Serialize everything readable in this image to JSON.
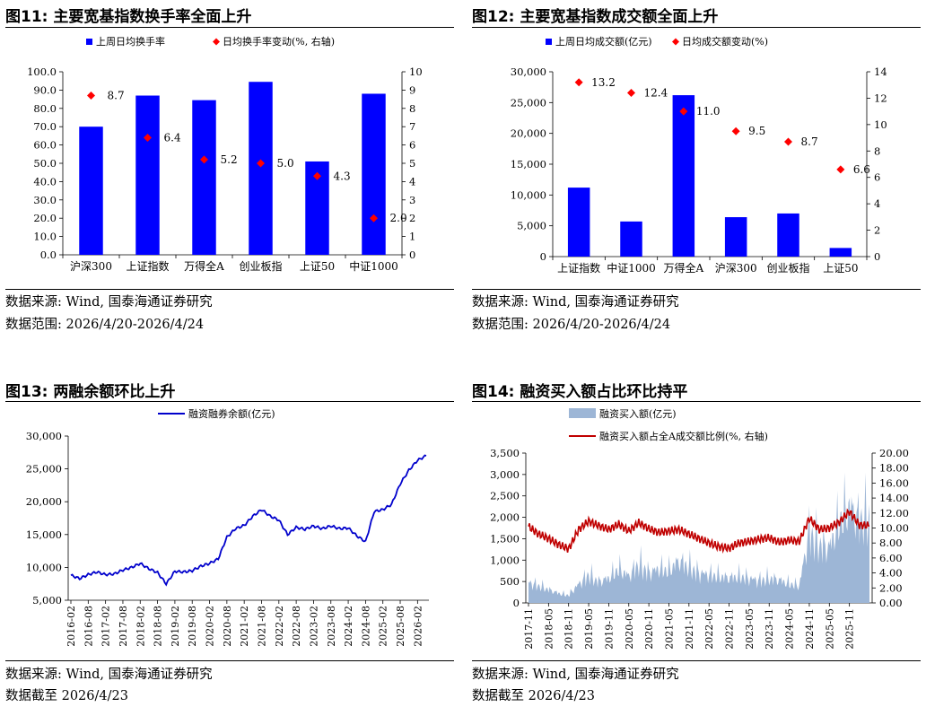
{
  "panels": [
    {
      "title": "图11: 主要宽基指数换手率全面上升",
      "source": "数据来源: Wind, 国泰海通证券研究",
      "note": "数据范围: 2026/4/20-2026/4/24"
    },
    {
      "title": "图12: 主要宽基指数成交额全面上升",
      "source": "数据来源: Wind, 国泰海通证券研究",
      "note": "数据范围: 2026/4/20-2026/4/24"
    },
    {
      "title": "图13: 两融余额环比上升",
      "source": "数据来源: Wind, 国泰海通证券研究",
      "note": "数据截至 2026/4/23"
    },
    {
      "title": "图14: 融资买入额占比环比持平",
      "source": "数据来源: Wind, 国泰海通证券研究",
      "note": "数据截至 2026/4/23"
    }
  ],
  "colors": {
    "bar": "#0000FF",
    "marker": "#FF0000",
    "line": "#0000CC",
    "area": "#9DB6D6",
    "ratio": "#C00000"
  },
  "chart_data": [
    {
      "type": "bar",
      "categories": [
        "沪深300",
        "上证指数",
        "万得全A",
        "创业板指",
        "上证50",
        "中证1000"
      ],
      "series": [
        {
          "name": "上周日均换手率",
          "axis": "left",
          "values": [
            70,
            87,
            84.5,
            94.5,
            51,
            88
          ]
        },
        {
          "name": "日均换手率变动(%, 右轴)",
          "axis": "right",
          "kind": "marker",
          "values": [
            8.7,
            6.4,
            5.2,
            5.0,
            4.3,
            2.0
          ]
        }
      ],
      "ylim": [
        0,
        100
      ],
      "yticks": [
        "0.0",
        "10.0",
        "20.0",
        "30.0",
        "40.0",
        "50.0",
        "60.0",
        "70.0",
        "80.0",
        "90.0",
        "100.0"
      ],
      "y2lim": [
        0,
        10
      ],
      "y2ticks": [
        "0",
        "1",
        "2",
        "3",
        "4",
        "5",
        "6",
        "7",
        "8",
        "9",
        "10"
      ],
      "labels": [
        "8.7",
        "6.4",
        "5.2",
        "5.0",
        "4.3",
        "2.0"
      ]
    },
    {
      "type": "bar",
      "categories": [
        "上证指数",
        "中证1000",
        "万得全A",
        "沪深300",
        "创业板指",
        "上证50"
      ],
      "series": [
        {
          "name": "上周日均成交额(亿元)",
          "axis": "left",
          "values": [
            11200,
            5700,
            26200,
            6400,
            7000,
            1400
          ]
        },
        {
          "name": "日均成交额变动(%)",
          "axis": "right",
          "kind": "marker",
          "values": [
            13.2,
            12.4,
            11.0,
            9.5,
            8.7,
            6.6
          ]
        }
      ],
      "ylim": [
        0,
        30000
      ],
      "yticks": [
        "0",
        "5,000",
        "10,000",
        "15,000",
        "20,000",
        "25,000",
        "30,000"
      ],
      "y2lim": [
        0,
        14
      ],
      "y2ticks": [
        "0",
        "2",
        "4",
        "6",
        "8",
        "10",
        "12",
        "14"
      ],
      "labels": [
        "13.2",
        "12.4",
        "11.0",
        "9.5",
        "8.7",
        "6.6"
      ]
    },
    {
      "type": "line",
      "series": [
        {
          "name": "融资融券余额(亿元)"
        }
      ],
      "x": [
        "2016-02",
        "2016-05",
        "2016-08",
        "2016-11",
        "2017-02",
        "2017-05",
        "2017-08",
        "2017-11",
        "2018-02",
        "2018-05",
        "2018-08",
        "2018-11",
        "2019-02",
        "2019-05",
        "2019-08",
        "2019-11",
        "2020-02",
        "2020-05",
        "2020-08",
        "2020-11",
        "2021-02",
        "2021-05",
        "2021-08",
        "2021-11",
        "2022-02",
        "2022-05",
        "2022-08",
        "2022-11",
        "2023-02",
        "2023-05",
        "2023-08",
        "2023-11",
        "2024-02",
        "2024-05",
        "2024-08",
        "2024-11",
        "2025-02",
        "2025-05",
        "2025-08",
        "2025-11",
        "2026-02",
        "2026-04"
      ],
      "values": [
        8800,
        8300,
        8900,
        9300,
        8900,
        9000,
        9600,
        10000,
        10600,
        9800,
        9200,
        7500,
        9400,
        9300,
        9500,
        10200,
        10600,
        11300,
        14600,
        15900,
        16400,
        17800,
        18800,
        17800,
        17200,
        15000,
        16100,
        15800,
        16300,
        15900,
        16300,
        15900,
        16000,
        14800,
        13900,
        18500,
        18800,
        19600,
        22700,
        24800,
        26300,
        27000
      ],
      "xticks": [
        "2016-02",
        "2016-08",
        "2017-02",
        "2017-08",
        "2018-02",
        "2018-08",
        "2019-02",
        "2019-08",
        "2020-02",
        "2020-08",
        "2021-02",
        "2021-08",
        "2022-02",
        "2022-08",
        "2023-02",
        "2023-08",
        "2024-02",
        "2024-08",
        "2025-02",
        "2025-08",
        "2026-02"
      ],
      "ylim": [
        5000,
        30000
      ],
      "yticks": [
        "5,000",
        "10,000",
        "15,000",
        "20,000",
        "25,000",
        "30,000"
      ]
    },
    {
      "type": "area",
      "series": [
        {
          "name": "融资买入额(亿元)",
          "axis": "left",
          "kind": "area"
        },
        {
          "name": "融资买入额占全A成交额比例(%, 右轴)",
          "axis": "right",
          "kind": "line"
        }
      ],
      "x": [
        "2017-11",
        "2018-02",
        "2018-05",
        "2018-08",
        "2018-11",
        "2019-02",
        "2019-05",
        "2019-08",
        "2019-11",
        "2020-02",
        "2020-05",
        "2020-08",
        "2020-11",
        "2021-02",
        "2021-05",
        "2021-08",
        "2021-11",
        "2022-02",
        "2022-05",
        "2022-08",
        "2022-11",
        "2023-02",
        "2023-05",
        "2023-08",
        "2023-11",
        "2024-02",
        "2024-05",
        "2024-08",
        "2024-11",
        "2025-02",
        "2025-05",
        "2025-08",
        "2025-11",
        "2026-02",
        "2026-04"
      ],
      "values_left": [
        550,
        450,
        350,
        250,
        200,
        500,
        750,
        550,
        650,
        900,
        700,
        1050,
        800,
        900,
        850,
        1100,
        950,
        800,
        750,
        700,
        650,
        700,
        650,
        600,
        650,
        600,
        500,
        450,
        1900,
        1550,
        1450,
        2150,
        2500,
        2200,
        2300
      ],
      "values_right": [
        10.2,
        9.2,
        8.6,
        7.8,
        7.2,
        9.8,
        10.9,
        10.3,
        9.8,
        10.5,
        9.6,
        10.7,
        9.9,
        9.4,
        9.6,
        9.8,
        9.2,
        8.6,
        8.0,
        7.5,
        7.3,
        8.0,
        8.2,
        8.5,
        8.7,
        8.1,
        8.4,
        8.2,
        11.3,
        9.8,
        10.0,
        10.8,
        12.2,
        10.4,
        10.3
      ],
      "xticks": [
        "2017-11",
        "2018-05",
        "2018-11",
        "2019-05",
        "2019-11",
        "2020-05",
        "2020-11",
        "2021-05",
        "2021-11",
        "2022-05",
        "2022-11",
        "2023-05",
        "2023-11",
        "2024-05",
        "2024-11",
        "2025-05",
        "2025-11"
      ],
      "ylim": [
        0,
        3500
      ],
      "yticks": [
        "0",
        "500",
        "1,000",
        "1,500",
        "2,000",
        "2,500",
        "3,000",
        "3,500"
      ],
      "y2lim": [
        0,
        20
      ],
      "y2ticks": [
        "0.00",
        "2.00",
        "4.00",
        "6.00",
        "8.00",
        "10.00",
        "12.00",
        "14.00",
        "16.00",
        "18.00",
        "20.00"
      ]
    }
  ]
}
